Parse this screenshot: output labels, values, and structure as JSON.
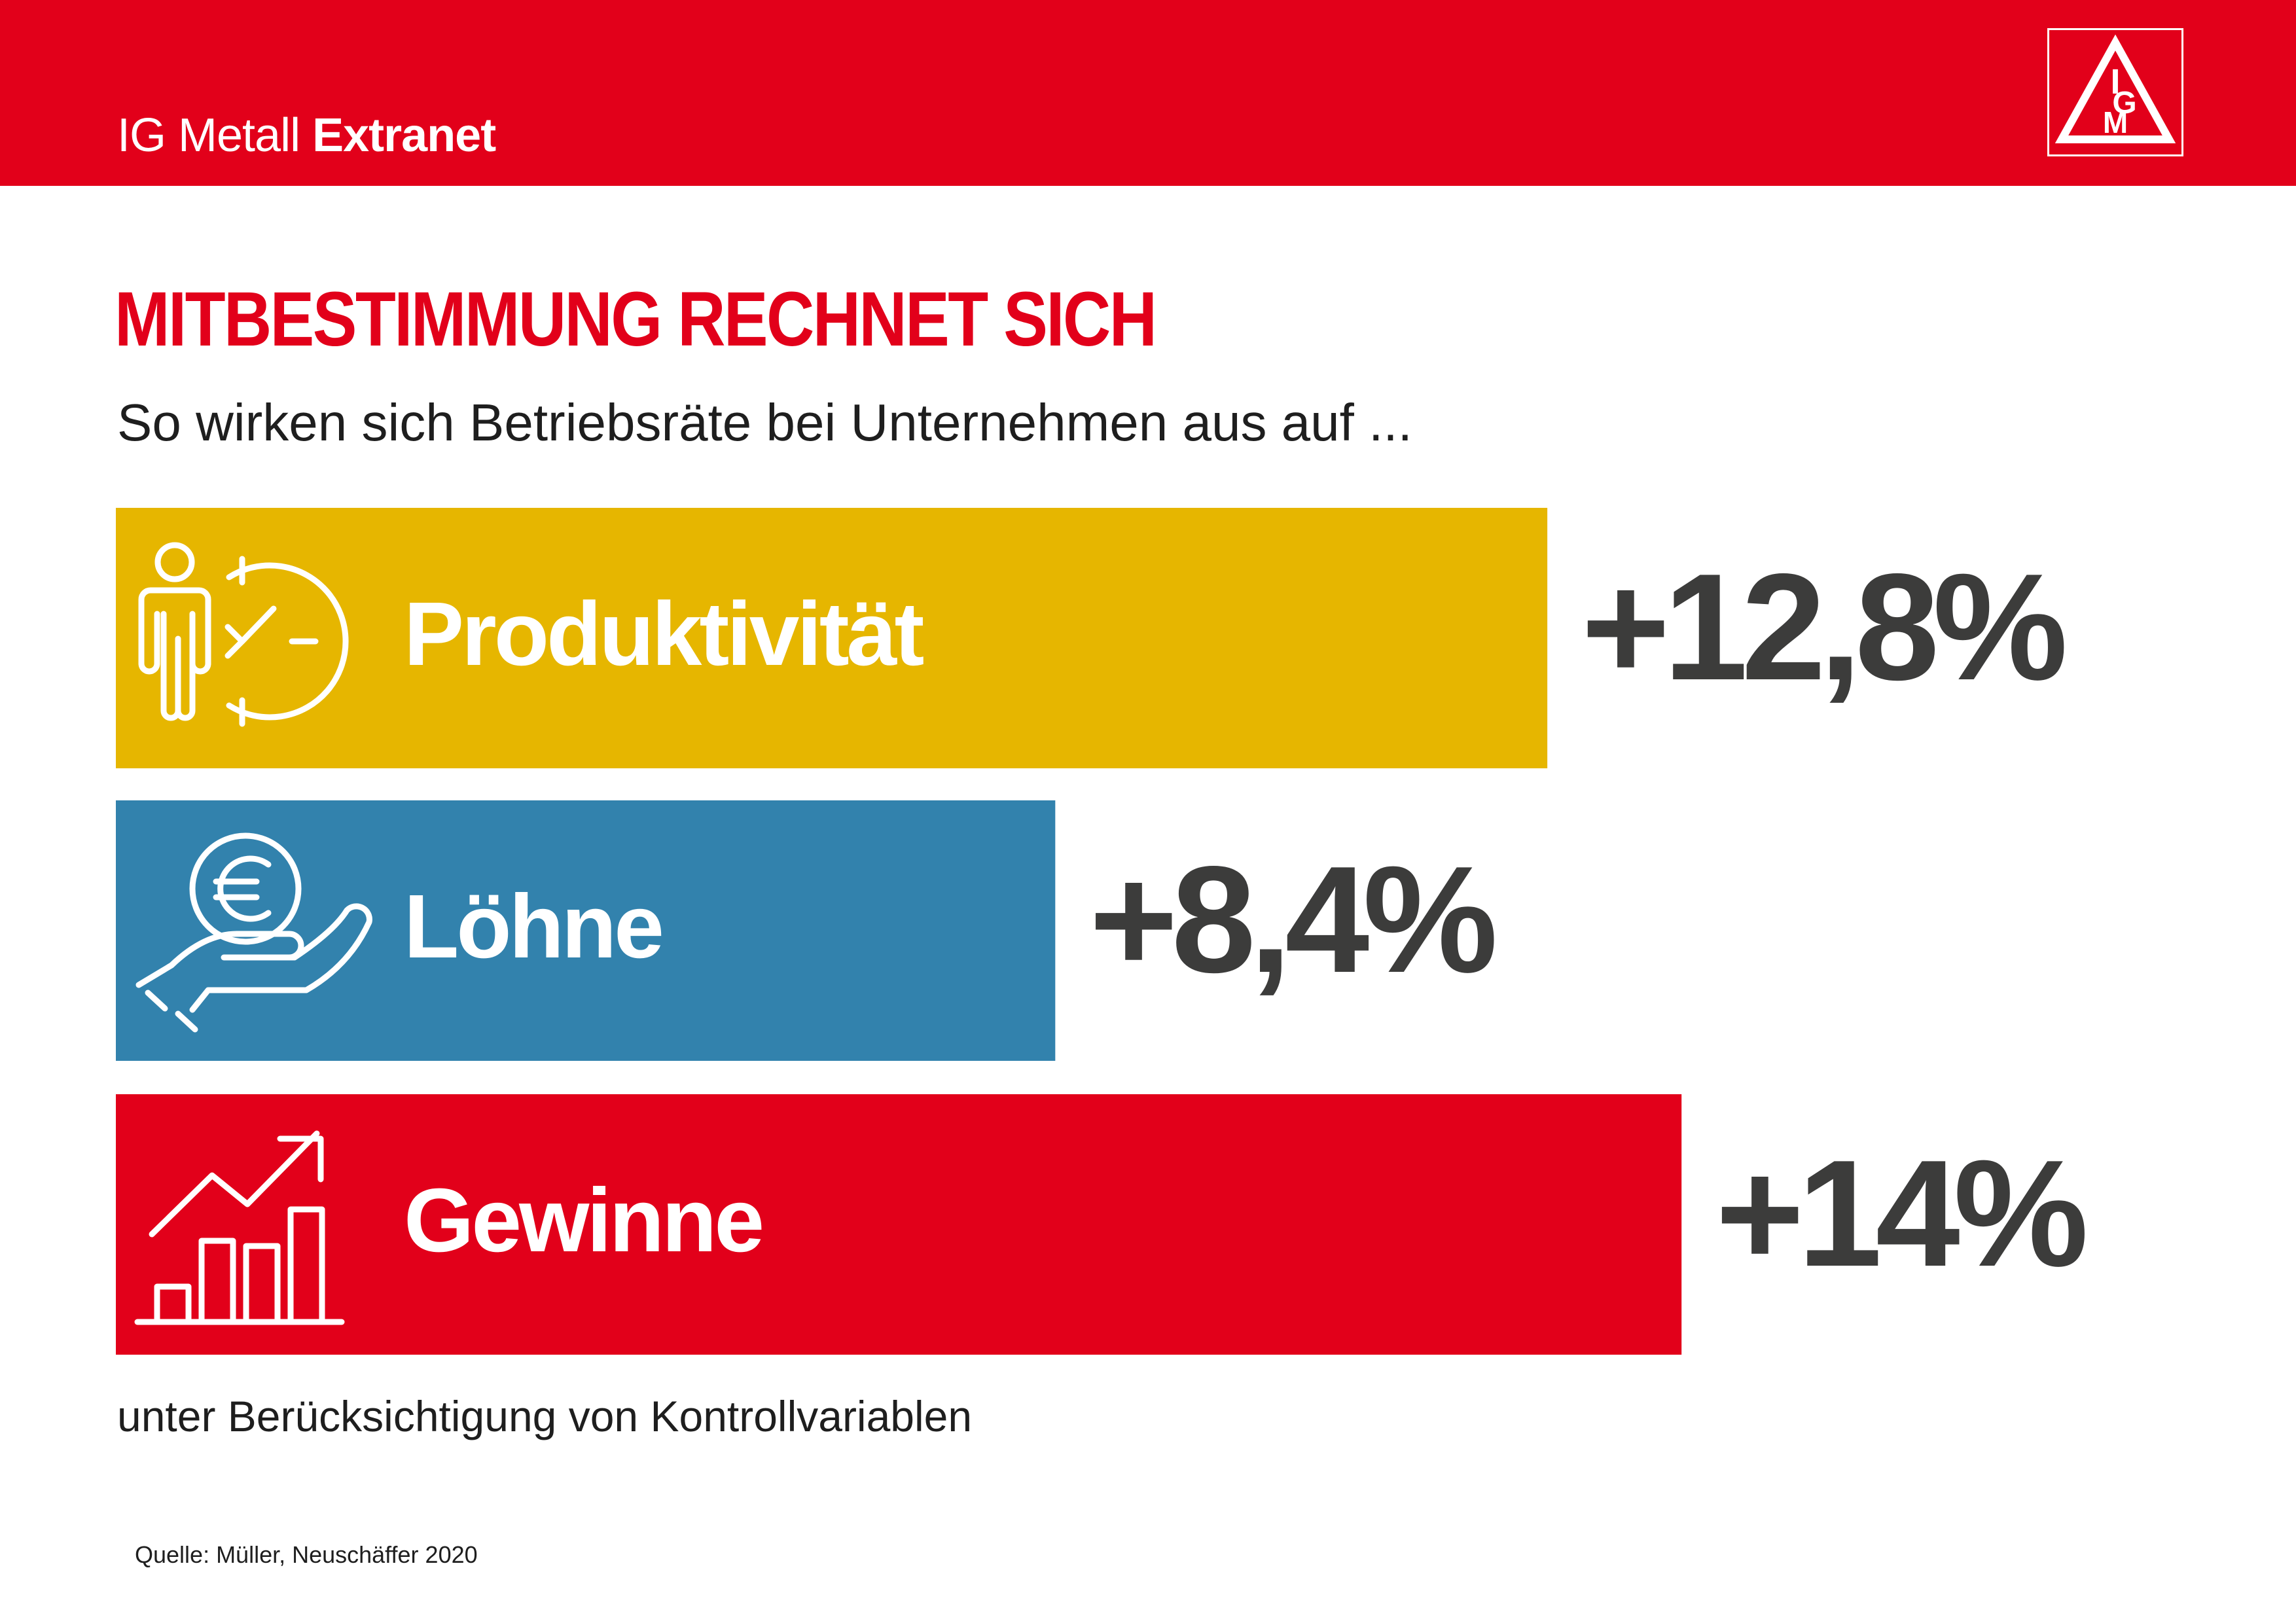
{
  "header": {
    "brand_regular": "IG Metall",
    "brand_bold": "Extranet",
    "logo_letters": [
      "I",
      "G",
      "M"
    ],
    "color": "#e2001a"
  },
  "headline": "MITBESTIMMUNG RECHNET SICH",
  "subtitle": "So wirken sich Betriebsräte bei Unternehmen aus auf ...",
  "chart_data": {
    "type": "bar",
    "orientation": "horizontal",
    "categories": [
      "Produktivität",
      "Löhne",
      "Gewinne"
    ],
    "values": [
      12.8,
      8.4,
      14
    ],
    "value_labels": [
      "+12,8%",
      "+8,4%",
      "+14%"
    ],
    "icons": [
      "person-clock-icon",
      "euro-coin-hand-icon",
      "rising-bar-chart-icon"
    ],
    "colors": [
      "#e6b600",
      "#3282ad",
      "#e2001a"
    ],
    "xlim": [
      0,
      16.1
    ],
    "grid": false,
    "legend": "none"
  },
  "footnote": "unter Berücksichtigung von Kontrollvariablen",
  "source": "Quelle: Müller, Neuschäffer 2020"
}
